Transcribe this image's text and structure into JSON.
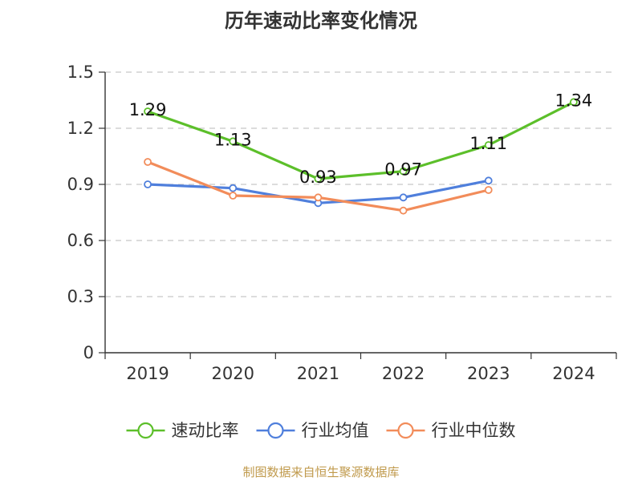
{
  "chart_data": {
    "type": "line",
    "title": "历年速动比率变化情况",
    "categories": [
      "2019",
      "2020",
      "2021",
      "2022",
      "2023",
      "2024"
    ],
    "ylim": [
      0,
      1.5
    ],
    "yticks": [
      "0",
      "0.3",
      "0.6",
      "0.9",
      "1.2",
      "1.5"
    ],
    "ytick_values": [
      0,
      0.3,
      0.6,
      0.9,
      1.2,
      1.5
    ],
    "grid": true,
    "legend_position": "bottom",
    "series": [
      {
        "name": "速动比率",
        "color": "#5cbf2a",
        "values": [
          1.29,
          1.13,
          0.93,
          0.97,
          1.11,
          1.34
        ],
        "labels": [
          "1.29",
          "1.13",
          "0.93",
          "0.97",
          "1.11",
          "1.34"
        ],
        "show_labels": true
      },
      {
        "name": "行业均值",
        "color": "#4f7fdc",
        "values": [
          0.9,
          0.88,
          0.8,
          0.83,
          0.92,
          null
        ],
        "show_labels": false
      },
      {
        "name": "行业中位数",
        "color": "#f28c5a",
        "values": [
          1.02,
          0.84,
          0.83,
          0.76,
          0.87,
          null
        ],
        "show_labels": false
      }
    ]
  },
  "footer": {
    "source": "制图数据来自恒生聚源数据库"
  }
}
